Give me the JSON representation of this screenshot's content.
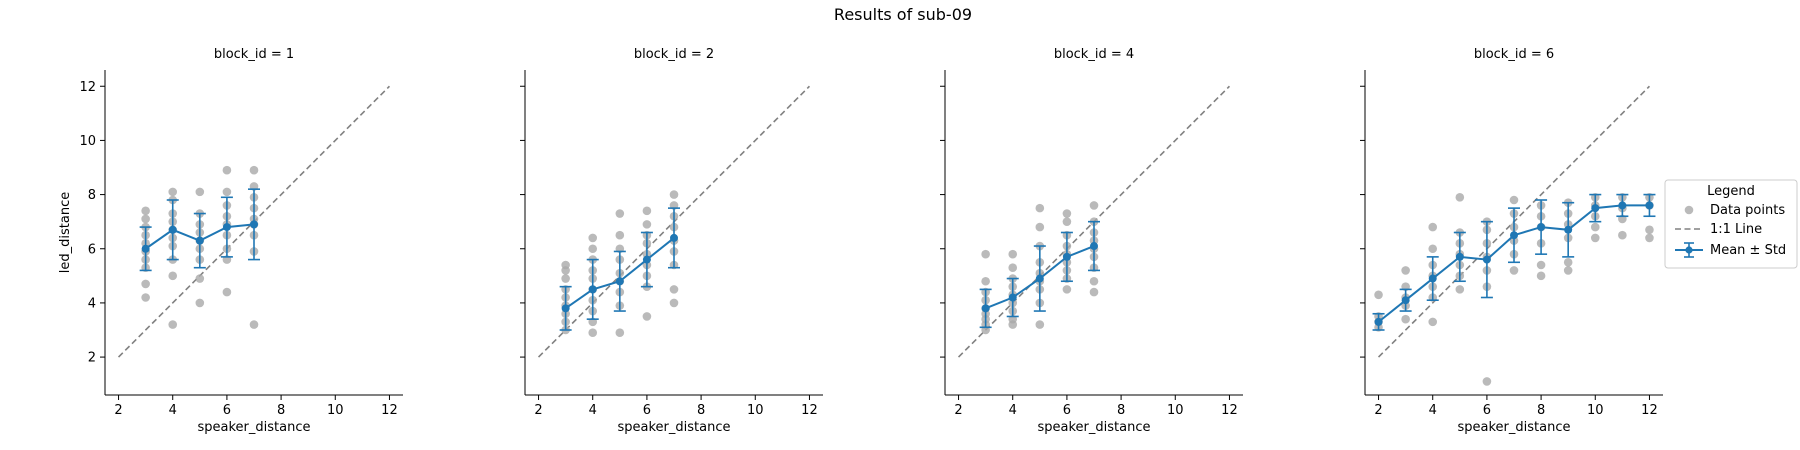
{
  "figure": {
    "title": "Results of sub-09"
  },
  "legend": {
    "title": "Legend",
    "placement": "right",
    "entries": [
      "Data points",
      "1:1 Line",
      "Mean ± Std"
    ]
  },
  "colors": {
    "points": "#a9a9a9",
    "mean": "#1f77b4",
    "identity": "#808080"
  },
  "chart_data": [
    {
      "type": "scatter",
      "title": "block_id = 1",
      "xlabel": "speaker_distance",
      "ylabel": "led_distance",
      "xlim": [
        1.5,
        12.5
      ],
      "ylim": [
        0.6,
        12.6
      ],
      "xticks": [
        2,
        4,
        6,
        8,
        10,
        12
      ],
      "yticks": [
        2,
        4,
        6,
        8,
        10,
        12
      ],
      "identity_line": [
        2,
        12
      ],
      "points": [
        [
          3,
          4.2
        ],
        [
          3,
          4.7
        ],
        [
          3,
          5.3
        ],
        [
          3,
          5.6
        ],
        [
          3,
          5.9
        ],
        [
          3,
          6.2
        ],
        [
          3,
          6.5
        ],
        [
          3,
          6.8
        ],
        [
          3,
          7.1
        ],
        [
          3,
          7.4
        ],
        [
          4,
          3.2
        ],
        [
          4,
          5.0
        ],
        [
          4,
          5.6
        ],
        [
          4,
          6.1
        ],
        [
          4,
          6.4
        ],
        [
          4,
          6.7
        ],
        [
          4,
          7.0
        ],
        [
          4,
          7.3
        ],
        [
          4,
          7.8
        ],
        [
          4,
          8.1
        ],
        [
          5,
          4.0
        ],
        [
          5,
          4.9
        ],
        [
          5,
          5.6
        ],
        [
          5,
          6.0
        ],
        [
          5,
          6.3
        ],
        [
          5,
          6.6
        ],
        [
          5,
          6.9
        ],
        [
          5,
          7.3
        ],
        [
          5,
          8.1
        ],
        [
          6,
          4.4
        ],
        [
          6,
          5.6
        ],
        [
          6,
          6.0
        ],
        [
          6,
          6.5
        ],
        [
          6,
          6.9
        ],
        [
          6,
          7.2
        ],
        [
          6,
          7.6
        ],
        [
          6,
          8.1
        ],
        [
          6,
          8.9
        ],
        [
          7,
          3.2
        ],
        [
          7,
          5.9
        ],
        [
          7,
          6.5
        ],
        [
          7,
          6.9
        ],
        [
          7,
          7.1
        ],
        [
          7,
          7.5
        ],
        [
          7,
          7.9
        ],
        [
          7,
          8.3
        ],
        [
          7,
          8.9
        ]
      ],
      "mean": [
        {
          "x": 3,
          "mean": 6.0,
          "std": 0.8
        },
        {
          "x": 4,
          "mean": 6.7,
          "std": 1.1
        },
        {
          "x": 5,
          "mean": 6.3,
          "std": 1.0
        },
        {
          "x": 6,
          "mean": 6.8,
          "std": 1.1
        },
        {
          "x": 7,
          "mean": 6.9,
          "std": 1.3
        }
      ]
    },
    {
      "type": "scatter",
      "title": "block_id = 2",
      "xlabel": "speaker_distance",
      "ylabel": "",
      "xlim": [
        1.5,
        12.5
      ],
      "ylim": [
        0.6,
        12.6
      ],
      "xticks": [
        2,
        4,
        6,
        8,
        10,
        12
      ],
      "yticks": [
        2,
        4,
        6,
        8,
        10,
        12
      ],
      "identity_line": [
        2,
        12
      ],
      "points": [
        [
          3,
          3.0
        ],
        [
          3,
          3.3
        ],
        [
          3,
          3.6
        ],
        [
          3,
          3.9
        ],
        [
          3,
          4.2
        ],
        [
          3,
          4.5
        ],
        [
          3,
          4.9
        ],
        [
          3,
          5.2
        ],
        [
          3,
          5.4
        ],
        [
          4,
          2.9
        ],
        [
          4,
          3.3
        ],
        [
          4,
          3.7
        ],
        [
          4,
          4.1
        ],
        [
          4,
          4.5
        ],
        [
          4,
          4.9
        ],
        [
          4,
          5.2
        ],
        [
          4,
          5.6
        ],
        [
          4,
          6.0
        ],
        [
          4,
          6.4
        ],
        [
          5,
          2.9
        ],
        [
          5,
          3.9
        ],
        [
          5,
          4.4
        ],
        [
          5,
          4.8
        ],
        [
          5,
          5.1
        ],
        [
          5,
          5.6
        ],
        [
          5,
          6.0
        ],
        [
          5,
          6.5
        ],
        [
          5,
          7.3
        ],
        [
          6,
          3.5
        ],
        [
          6,
          4.6
        ],
        [
          6,
          5.0
        ],
        [
          6,
          5.4
        ],
        [
          6,
          5.8
        ],
        [
          6,
          6.2
        ],
        [
          6,
          6.5
        ],
        [
          6,
          6.9
        ],
        [
          6,
          7.4
        ],
        [
          7,
          4.0
        ],
        [
          7,
          4.5
        ],
        [
          7,
          5.4
        ],
        [
          7,
          5.9
        ],
        [
          7,
          6.3
        ],
        [
          7,
          6.8
        ],
        [
          7,
          7.2
        ],
        [
          7,
          7.6
        ],
        [
          7,
          8.0
        ]
      ],
      "mean": [
        {
          "x": 3,
          "mean": 3.8,
          "std": 0.8
        },
        {
          "x": 4,
          "mean": 4.5,
          "std": 1.1
        },
        {
          "x": 5,
          "mean": 4.8,
          "std": 1.1
        },
        {
          "x": 6,
          "mean": 5.6,
          "std": 1.0
        },
        {
          "x": 7,
          "mean": 6.4,
          "std": 1.1
        }
      ]
    },
    {
      "type": "scatter",
      "title": "block_id = 4",
      "xlabel": "speaker_distance",
      "ylabel": "",
      "xlim": [
        1.5,
        12.5
      ],
      "ylim": [
        0.6,
        12.6
      ],
      "xticks": [
        2,
        4,
        6,
        8,
        10,
        12
      ],
      "yticks": [
        2,
        4,
        6,
        8,
        10,
        12
      ],
      "identity_line": [
        2,
        12
      ],
      "points": [
        [
          3,
          3.0
        ],
        [
          3,
          3.2
        ],
        [
          3,
          3.4
        ],
        [
          3,
          3.6
        ],
        [
          3,
          3.8
        ],
        [
          3,
          4.1
        ],
        [
          3,
          4.4
        ],
        [
          3,
          4.8
        ],
        [
          3,
          5.8
        ],
        [
          4,
          3.2
        ],
        [
          4,
          3.4
        ],
        [
          4,
          3.7
        ],
        [
          4,
          4.0
        ],
        [
          4,
          4.3
        ],
        [
          4,
          4.6
        ],
        [
          4,
          4.9
        ],
        [
          4,
          5.3
        ],
        [
          4,
          5.8
        ],
        [
          5,
          3.2
        ],
        [
          5,
          4.0
        ],
        [
          5,
          4.5
        ],
        [
          5,
          4.8
        ],
        [
          5,
          5.1
        ],
        [
          5,
          5.5
        ],
        [
          5,
          6.1
        ],
        [
          5,
          6.8
        ],
        [
          5,
          7.5
        ],
        [
          6,
          4.5
        ],
        [
          6,
          4.9
        ],
        [
          6,
          5.2
        ],
        [
          6,
          5.5
        ],
        [
          6,
          5.8
        ],
        [
          6,
          6.1
        ],
        [
          6,
          6.5
        ],
        [
          6,
          7.0
        ],
        [
          6,
          7.3
        ],
        [
          7,
          4.4
        ],
        [
          7,
          4.8
        ],
        [
          7,
          5.3
        ],
        [
          7,
          5.7
        ],
        [
          7,
          6.0
        ],
        [
          7,
          6.3
        ],
        [
          7,
          6.6
        ],
        [
          7,
          7.0
        ],
        [
          7,
          7.6
        ]
      ],
      "mean": [
        {
          "x": 3,
          "mean": 3.8,
          "std": 0.7
        },
        {
          "x": 4,
          "mean": 4.2,
          "std": 0.7
        },
        {
          "x": 5,
          "mean": 4.9,
          "std": 1.2
        },
        {
          "x": 6,
          "mean": 5.7,
          "std": 0.9
        },
        {
          "x": 7,
          "mean": 6.1,
          "std": 0.9
        }
      ]
    },
    {
      "type": "scatter",
      "title": "block_id = 6",
      "xlabel": "speaker_distance",
      "ylabel": "",
      "xlim": [
        1.5,
        12.5
      ],
      "ylim": [
        0.6,
        12.6
      ],
      "xticks": [
        2,
        4,
        6,
        8,
        10,
        12
      ],
      "yticks": [
        2,
        4,
        6,
        8,
        10,
        12
      ],
      "identity_line": [
        2,
        12
      ],
      "points": [
        [
          2,
          3.1
        ],
        [
          2,
          3.3
        ],
        [
          2,
          3.5
        ],
        [
          2,
          4.3
        ],
        [
          3,
          3.4
        ],
        [
          3,
          3.9
        ],
        [
          3,
          4.2
        ],
        [
          3,
          4.6
        ],
        [
          3,
          5.2
        ],
        [
          4,
          3.3
        ],
        [
          4,
          4.2
        ],
        [
          4,
          4.6
        ],
        [
          4,
          5.0
        ],
        [
          4,
          5.4
        ],
        [
          4,
          6.0
        ],
        [
          4,
          6.8
        ],
        [
          5,
          4.5
        ],
        [
          5,
          5.0
        ],
        [
          5,
          5.4
        ],
        [
          5,
          5.8
        ],
        [
          5,
          6.2
        ],
        [
          5,
          6.6
        ],
        [
          5,
          7.9
        ],
        [
          6,
          1.1
        ],
        [
          6,
          4.6
        ],
        [
          6,
          5.2
        ],
        [
          6,
          5.7
        ],
        [
          6,
          6.2
        ],
        [
          6,
          6.7
        ],
        [
          6,
          7.0
        ],
        [
          7,
          5.2
        ],
        [
          7,
          5.8
        ],
        [
          7,
          6.3
        ],
        [
          7,
          6.8
        ],
        [
          7,
          7.3
        ],
        [
          7,
          7.8
        ],
        [
          8,
          5.0
        ],
        [
          8,
          5.4
        ],
        [
          8,
          6.2
        ],
        [
          8,
          6.8
        ],
        [
          8,
          7.2
        ],
        [
          8,
          7.6
        ],
        [
          9,
          5.2
        ],
        [
          9,
          5.5
        ],
        [
          9,
          6.4
        ],
        [
          9,
          6.9
        ],
        [
          9,
          7.3
        ],
        [
          9,
          7.7
        ],
        [
          10,
          6.4
        ],
        [
          10,
          6.8
        ],
        [
          10,
          7.2
        ],
        [
          10,
          7.6
        ],
        [
          10,
          7.9
        ],
        [
          11,
          6.5
        ],
        [
          11,
          7.1
        ],
        [
          11,
          7.5
        ],
        [
          11,
          7.9
        ],
        [
          12,
          6.4
        ],
        [
          12,
          6.7
        ],
        [
          12,
          7.6
        ],
        [
          12,
          7.9
        ]
      ],
      "mean": [
        {
          "x": 2,
          "mean": 3.3,
          "std": 0.3
        },
        {
          "x": 3,
          "mean": 4.1,
          "std": 0.4
        },
        {
          "x": 4,
          "mean": 4.9,
          "std": 0.8
        },
        {
          "x": 5,
          "mean": 5.7,
          "std": 0.9
        },
        {
          "x": 6,
          "mean": 5.6,
          "std": 1.4
        },
        {
          "x": 7,
          "mean": 6.5,
          "std": 1.0
        },
        {
          "x": 8,
          "mean": 6.8,
          "std": 1.0
        },
        {
          "x": 9,
          "mean": 6.7,
          "std": 1.0
        },
        {
          "x": 10,
          "mean": 7.5,
          "std": 0.5
        },
        {
          "x": 11,
          "mean": 7.6,
          "std": 0.4
        },
        {
          "x": 12,
          "mean": 7.6,
          "std": 0.4
        }
      ]
    }
  ]
}
